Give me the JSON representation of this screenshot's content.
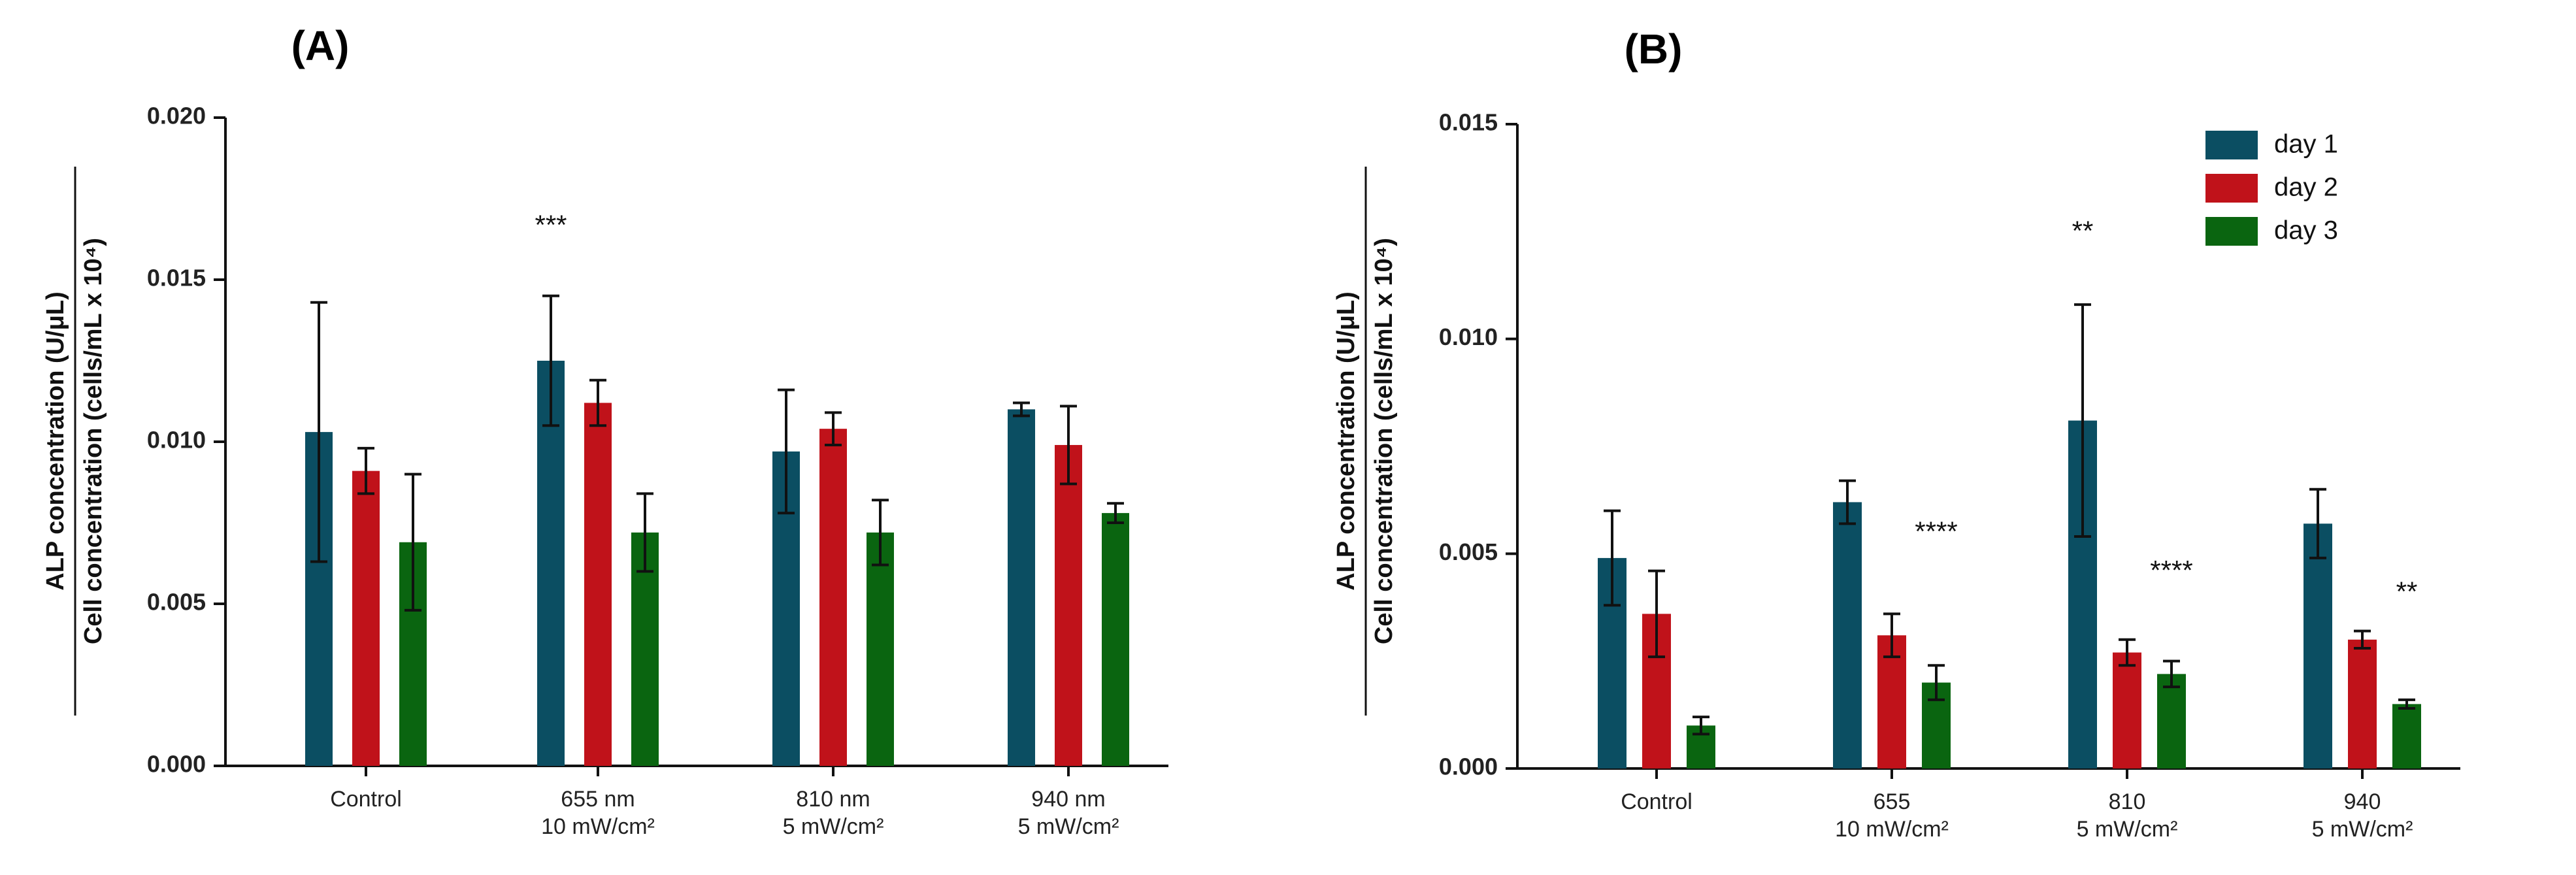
{
  "colors": {
    "day1": "#0b4e62",
    "day2": "#c0121a",
    "day3": "#0a6510",
    "axis": "#111111"
  },
  "chart_data": [
    {
      "type": "bar",
      "panel_label": "(A)",
      "ylabel_numerator": "ALP concentration (U/μL)",
      "ylabel_denominator": "Cell concentration (cells/mL x 10⁴)",
      "ylim": [
        0,
        0.02
      ],
      "yticks": [
        0.0,
        0.005,
        0.01,
        0.015,
        0.02
      ],
      "ytick_labels": [
        "0.000",
        "0.005",
        "0.010",
        "0.015",
        "0.020"
      ],
      "categories": [
        {
          "line1": "Control",
          "line2": ""
        },
        {
          "line1": "655 nm",
          "line2": "10 mW/cm²"
        },
        {
          "line1": "810 nm",
          "line2": "5 mW/cm²"
        },
        {
          "line1": "940 nm",
          "line2": "5 mW/cm²"
        }
      ],
      "series": [
        {
          "name": "",
          "values": [
            0.0103,
            0.0125,
            0.0097,
            0.011
          ],
          "errors": [
            0.004,
            0.002,
            0.0019,
            0.0002
          ]
        },
        {
          "name": "",
          "values": [
            0.0091,
            0.0112,
            0.0104,
            0.0099
          ],
          "errors": [
            0.0007,
            0.0007,
            0.0005,
            0.0012
          ]
        },
        {
          "name": "",
          "values": [
            0.0069,
            0.0072,
            0.0072,
            0.0078
          ],
          "errors": [
            0.0021,
            0.0012,
            0.001,
            0.0003
          ]
        }
      ],
      "annotations": [
        {
          "text": "***",
          "category": 1,
          "series": 0,
          "y": 0.0164
        }
      ],
      "legend": null
    },
    {
      "type": "bar",
      "panel_label": "(B)",
      "ylabel_numerator": "ALP concentration (U/μL)",
      "ylabel_denominator": "Cell concentration (cells/mL x 10⁴)",
      "ylim": [
        0,
        0.015
      ],
      "yticks": [
        0.0,
        0.005,
        0.01,
        0.015
      ],
      "ytick_labels": [
        "0.000",
        "0.005",
        "0.010",
        "0.015"
      ],
      "categories": [
        {
          "line1": "Control",
          "line2": ""
        },
        {
          "line1": "655",
          "line2": "10 mW/cm²"
        },
        {
          "line1": "810",
          "line2": "5 mW/cm²"
        },
        {
          "line1": "940",
          "line2": "5 mW/cm²"
        }
      ],
      "series": [
        {
          "name": "day 1",
          "values": [
            0.0049,
            0.0062,
            0.0081,
            0.0057
          ],
          "errors": [
            0.0011,
            0.0005,
            0.0027,
            0.0008
          ]
        },
        {
          "name": "day 2",
          "values": [
            0.0036,
            0.0031,
            0.0027,
            0.003
          ],
          "errors": [
            0.001,
            0.0005,
            0.0003,
            0.0002
          ]
        },
        {
          "name": "day 3",
          "values": [
            0.001,
            0.002,
            0.0022,
            0.0015
          ],
          "errors": [
            0.0002,
            0.0004,
            0.0003,
            0.0001
          ]
        }
      ],
      "annotations": [
        {
          "text": "**",
          "category": 2,
          "series": 0,
          "y": 0.0123
        },
        {
          "text": "****",
          "category": 1,
          "series": 2,
          "y": 0.0053
        },
        {
          "text": "****",
          "category": 2,
          "series": 2,
          "y": 0.0044
        },
        {
          "text": "**",
          "category": 3,
          "series": 2,
          "y": 0.0039
        }
      ],
      "legend": {
        "position": "top-right",
        "entries": [
          "day 1",
          "day 2",
          "day 3"
        ]
      }
    }
  ]
}
